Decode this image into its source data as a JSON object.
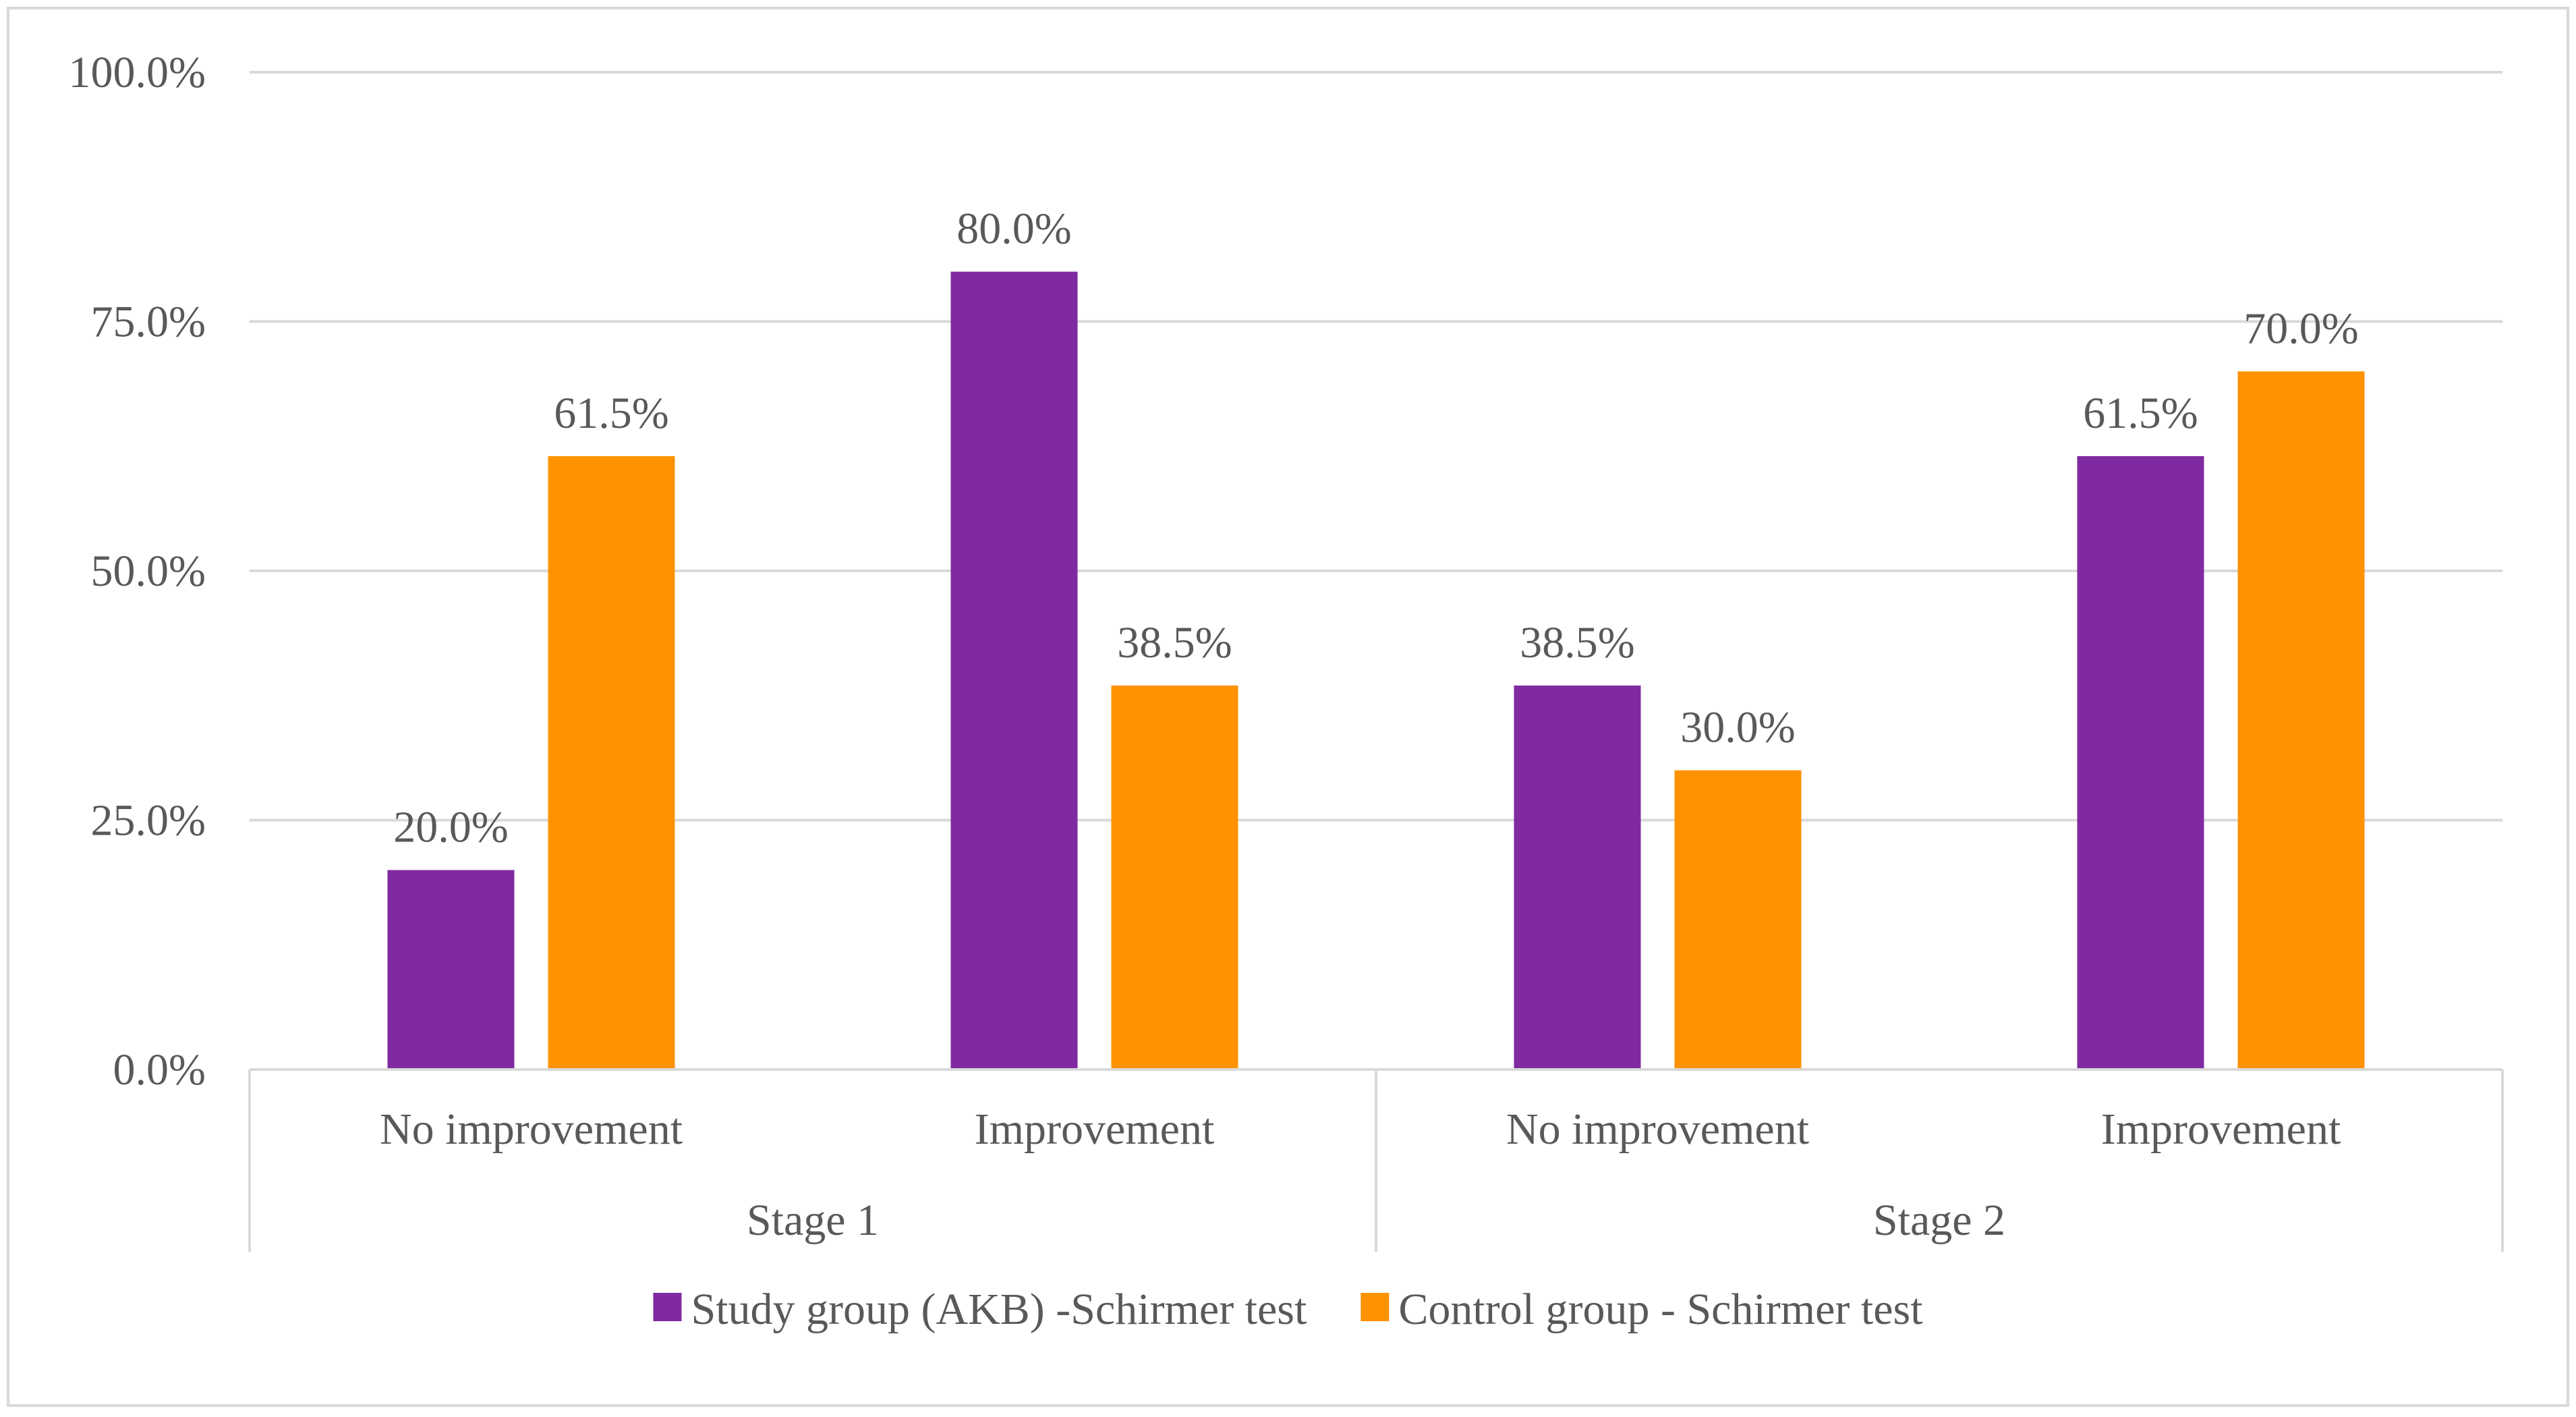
{
  "chart_data": {
    "type": "bar",
    "title": "",
    "xlabel": "",
    "ylabel": "",
    "ylim": [
      0,
      100
    ],
    "yticks": [
      0,
      25,
      50,
      75,
      100
    ],
    "ytick_labels": [
      "0.0%",
      "25.0%",
      "50.0%",
      "75.0%",
      "100.0%"
    ],
    "groups": [
      "Stage 1",
      "Stage 2"
    ],
    "categories": [
      "No improvement",
      "Improvement",
      "No improvement",
      "Improvement"
    ],
    "category_group": [
      0,
      0,
      1,
      1
    ],
    "series": [
      {
        "name": "Study group (AKB) -Schirmer test",
        "color": "#7F2AA0",
        "values": [
          20.0,
          80.0,
          38.5,
          61.5
        ],
        "labels": [
          "20.0%",
          "80.0%",
          "38.5%",
          "61.5%"
        ]
      },
      {
        "name": "Control group - Schirmer test",
        "color": "#FF9200",
        "values": [
          61.5,
          38.5,
          30.0,
          70.0
        ],
        "labels": [
          "61.5%",
          "38.5%",
          "30.0%",
          "70.0%"
        ]
      }
    ],
    "grid": true,
    "legend_position": "bottom"
  }
}
